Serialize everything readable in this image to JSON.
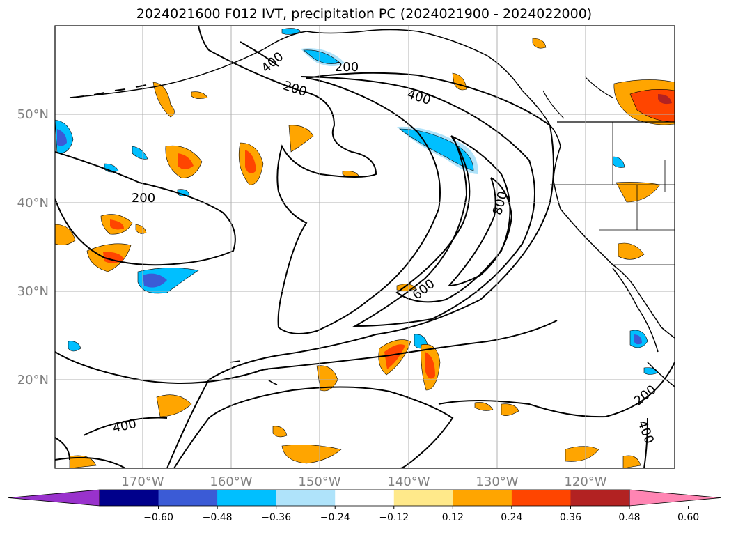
{
  "chart_data": {
    "type": "map_contour",
    "title": "2024021600 F012 IVT, precipitation PC (2024021900 - 2024022000)",
    "map": {
      "lon_range": [
        -180,
        -110
      ],
      "lat_range": [
        10,
        60
      ],
      "grid": true,
      "lon_ticks": [
        -170,
        -160,
        -150,
        -140,
        -130,
        -120
      ],
      "lat_ticks": [
        20,
        30,
        40,
        50
      ],
      "lon_tick_labels": [
        "170°W",
        "160°W",
        "150°W",
        "140°W",
        "130°W",
        "120°W"
      ],
      "lat_tick_labels": [
        "20°N",
        "30°N",
        "40°N",
        "50°N"
      ]
    },
    "ivt_contour_labels": [
      "200",
      "400",
      "200",
      "400",
      "200",
      "600",
      "800",
      "200",
      "400",
      "400"
    ],
    "colorbar": {
      "extend": "both",
      "tick_labels": [
        "−0.60",
        "−0.48",
        "−0.36",
        "−0.24",
        "−0.12",
        "0.12",
        "0.24",
        "0.36",
        "0.48",
        "0.60"
      ],
      "colors": [
        "#9932cc",
        "#00008b",
        "#3b5bd6",
        "#00bfff",
        "#afe3fa",
        "#ffffff",
        "#ffe98a",
        "#ffa500",
        "#ff4500",
        "#b22222",
        "#ff85b3"
      ]
    }
  }
}
